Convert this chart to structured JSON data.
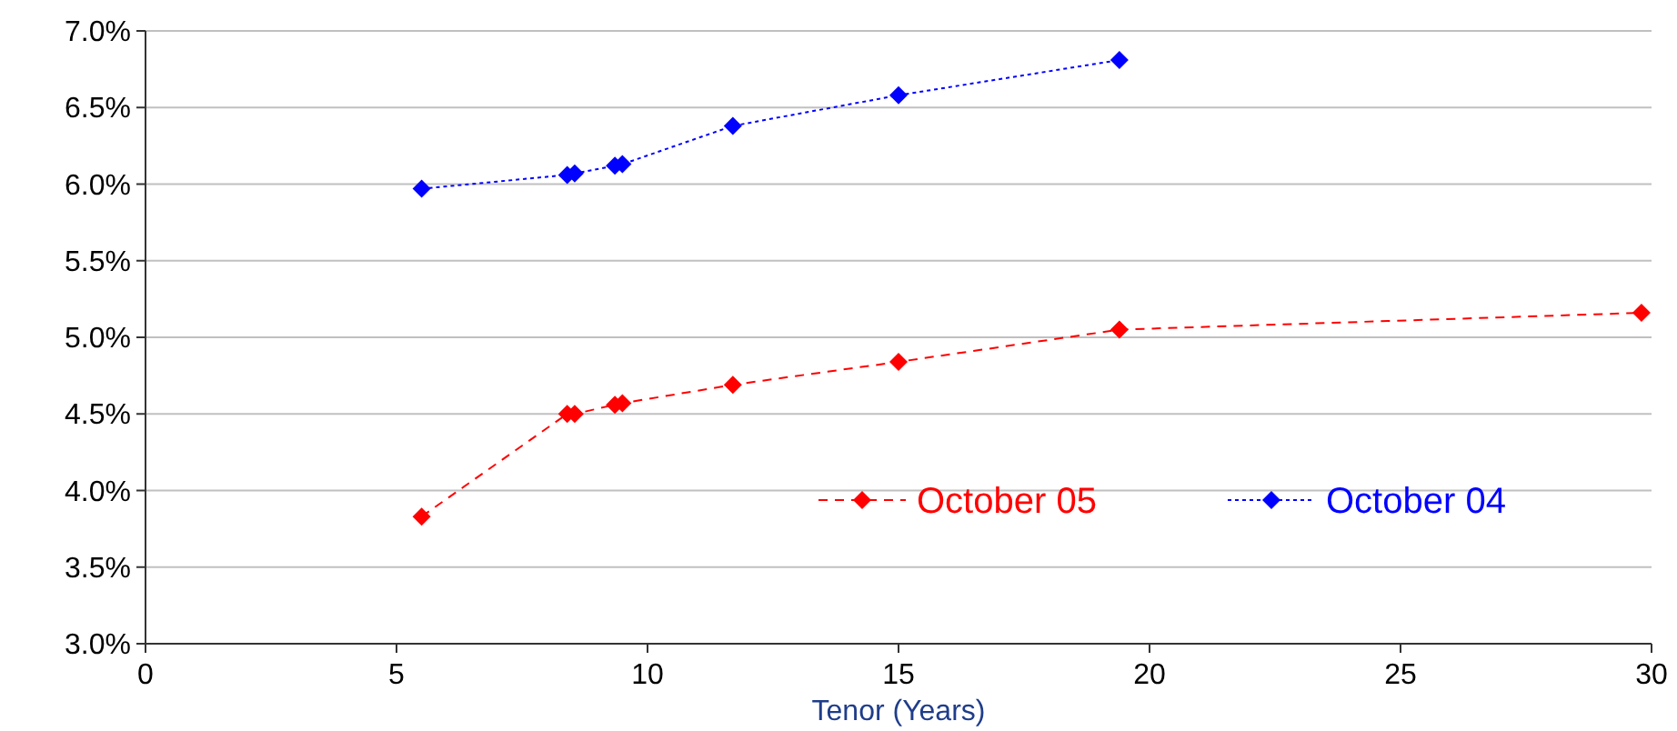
{
  "chart_data": {
    "type": "line",
    "xlabel": "Tenor (Years)",
    "xlim": [
      0,
      30
    ],
    "xticks": [
      0,
      5,
      10,
      15,
      20,
      25,
      30
    ],
    "ylim": [
      3,
      7
    ],
    "yticks": [
      {
        "value": 3,
        "label": "3.0%"
      },
      {
        "value": 3.5,
        "label": "3.5%"
      },
      {
        "value": 4,
        "label": "4.0%"
      },
      {
        "value": 4.5,
        "label": "4.5%"
      },
      {
        "value": 5,
        "label": "5.0%"
      },
      {
        "value": 5.5,
        "label": "5.5%"
      },
      {
        "value": 6,
        "label": "6.0%"
      },
      {
        "value": 6.5,
        "label": "6.5%"
      },
      {
        "value": 7,
        "label": "7.0%"
      }
    ],
    "grid": "y",
    "legend": "bottom right",
    "marker": "diamond",
    "series": [
      {
        "name": "October 05",
        "color": "#ff0000",
        "line_style": "dashed",
        "x": [
          5.5,
          8.4,
          8.55,
          9.35,
          9.5,
          11.7,
          15,
          19.4,
          29.8
        ],
        "values": [
          3.83,
          4.5,
          4.5,
          4.56,
          4.57,
          4.69,
          4.84,
          5.05,
          5.16
        ]
      },
      {
        "name": "October 04",
        "color": "#0000ff",
        "line_style": "dotted",
        "x": [
          5.5,
          8.4,
          8.55,
          9.35,
          9.5,
          11.7,
          15,
          19.4
        ],
        "values": [
          5.97,
          6.06,
          6.07,
          6.12,
          6.13,
          6.38,
          6.58,
          6.81
        ]
      }
    ]
  }
}
